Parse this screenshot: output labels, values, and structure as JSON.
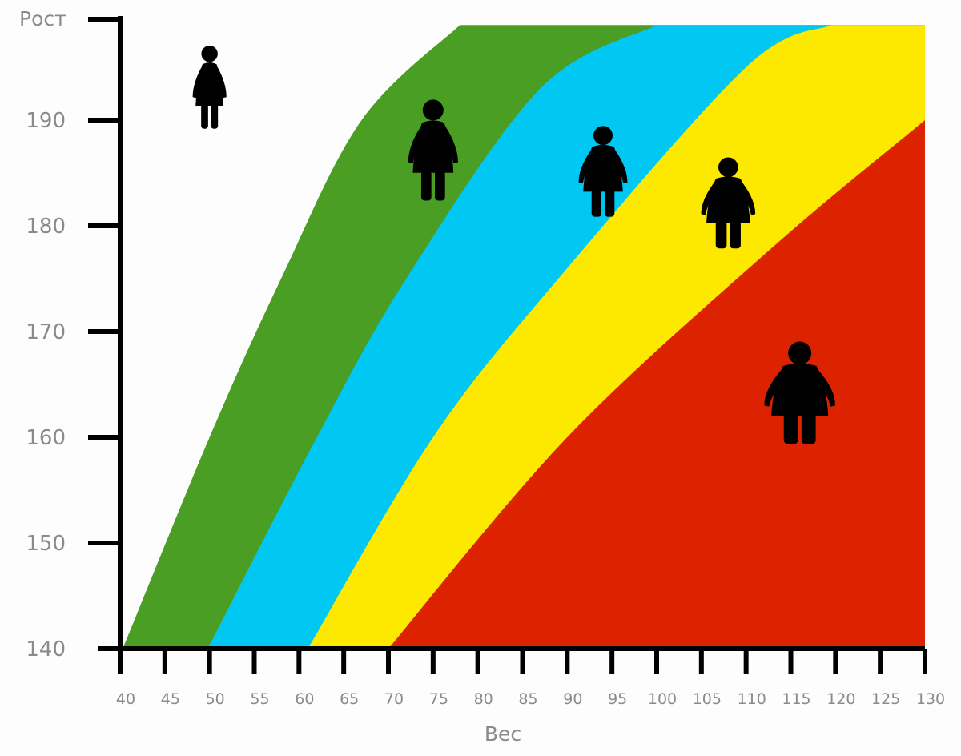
{
  "chart_data": {
    "type": "area",
    "xlabel": "Вес",
    "ylabel": "Рост",
    "xlim": [
      40,
      130
    ],
    "ylim": [
      140,
      200
    ],
    "x_ticks": [
      40,
      45,
      50,
      55,
      60,
      65,
      70,
      75,
      80,
      85,
      90,
      95,
      100,
      105,
      110,
      115,
      120,
      125,
      130
    ],
    "x_tick_labels": [
      "40",
      "45",
      "50",
      "55",
      "60",
      "65",
      "70",
      "75",
      "80",
      "85",
      "90",
      "95",
      "100",
      "105",
      "110",
      "115",
      "120",
      "125",
      "130"
    ],
    "y_ticks": [
      140,
      150,
      160,
      170,
      180,
      190
    ],
    "y_tick_labels": [
      "140",
      "150",
      "160",
      "170",
      "180",
      "190"
    ],
    "grid": false,
    "legend": "none",
    "zones": [
      {
        "color": "#4a9e23",
        "lower_boundary": [
          [
            40.3,
            140
          ],
          [
            50,
            160
          ],
          [
            58,
            175
          ],
          [
            67,
            190
          ],
          [
            78,
            199
          ]
        ]
      },
      {
        "color": "#00c8f2",
        "lower_boundary": [
          [
            49.8,
            140
          ],
          [
            62,
            160
          ],
          [
            72,
            175
          ],
          [
            87,
            193
          ],
          [
            100,
            199
          ]
        ]
      },
      {
        "color": "#fde800",
        "lower_boundary": [
          [
            61,
            140
          ],
          [
            75,
            160
          ],
          [
            89,
            175
          ],
          [
            110,
            195
          ],
          [
            119.5,
            199
          ]
        ]
      },
      {
        "color": "#dd2200",
        "lower_boundary": [
          [
            70,
            140
          ],
          [
            90,
            160
          ],
          [
            113,
            178
          ],
          [
            130,
            190
          ]
        ]
      }
    ],
    "figures": [
      {
        "icon": "woman-figure-icon",
        "x": 50,
        "y": 193,
        "build": 0.35,
        "size": 1.2
      },
      {
        "icon": "woman-figure-icon",
        "x": 75,
        "y": 187,
        "build": 0.65,
        "size": 1.45
      },
      {
        "icon": "woman-figure-icon",
        "x": 94,
        "y": 185,
        "build": 0.8,
        "size": 1.3
      },
      {
        "icon": "woman-figure-icon",
        "x": 108,
        "y": 182,
        "build": 1.0,
        "size": 1.3
      },
      {
        "icon": "woman-figure-icon",
        "x": 116,
        "y": 164,
        "build": 1.35,
        "size": 1.45
      }
    ]
  }
}
